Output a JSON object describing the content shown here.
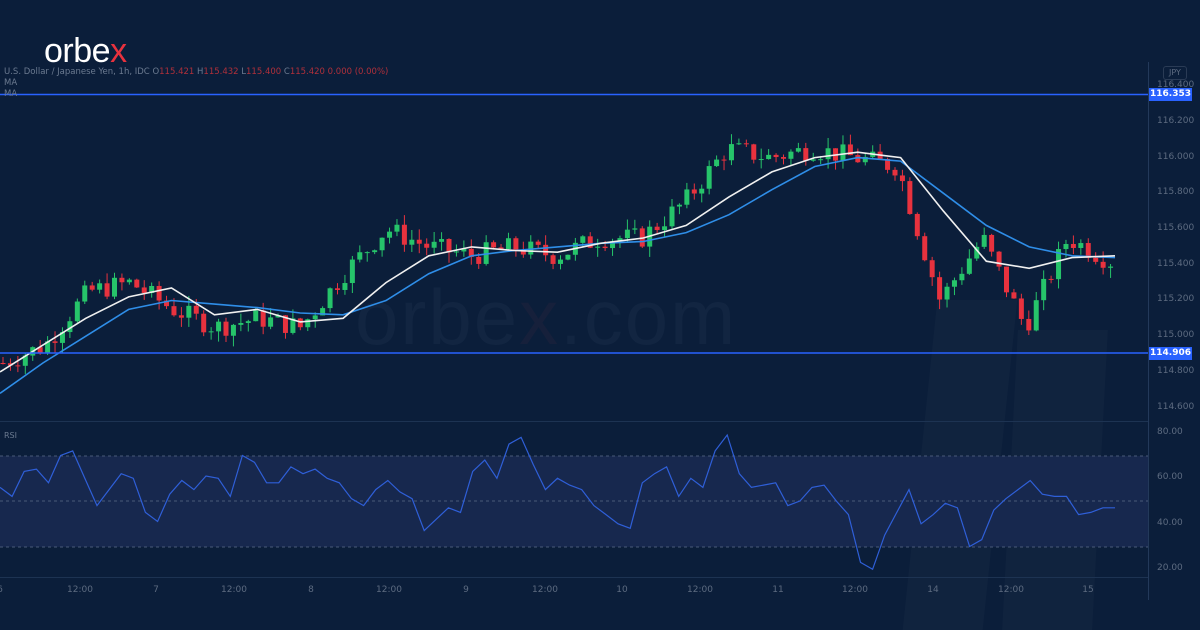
{
  "brand": {
    "logo_main": "orbe",
    "logo_accent": "x",
    "watermark_main": "orbe",
    "watermark_accent": "x",
    "watermark_suffix": ".com"
  },
  "header": {
    "symbol": "U.S. Dollar / Japanese Yen, 1h, IDC",
    "o_label": "O",
    "o": "115.421",
    "h_label": "H",
    "h": "115.432",
    "l_label": "L",
    "l": "115.400",
    "c_label": "C",
    "c": "115.420",
    "change": "0.000 (0.00%)",
    "indicator_1": "MA",
    "indicator_2": "MA"
  },
  "price_axis": {
    "currency": "JPY",
    "labels": [
      "116.400",
      "116.200",
      "116.000",
      "115.800",
      "115.600",
      "115.400",
      "115.200",
      "115.000",
      "114.800",
      "114.600"
    ],
    "resistance": "116.353",
    "support": "114.906"
  },
  "rsi_axis": {
    "label": "RSI",
    "labels": [
      "80.00",
      "60.00",
      "40.00",
      "20.00"
    ]
  },
  "time_axis": {
    "labels": [
      "6",
      "12:00",
      "7",
      "12:00",
      "8",
      "12:00",
      "9",
      "12:00",
      "10",
      "12:00",
      "11",
      "12:00",
      "14",
      "12:00",
      "15"
    ]
  },
  "colors": {
    "background": "#0b1e3a",
    "up": "#26c46a",
    "down": "#e8323e",
    "ma_fast": "#f0f0f0",
    "ma_slow": "#2f8ee8",
    "level_line": "#2962ff",
    "rsi_line": "#2f5fd8",
    "rsi_band": "#17284e"
  },
  "chart_data": [
    {
      "type": "candlestick",
      "title": "U.S. Dollar / Japanese Yen, 1h, IDC",
      "xlabel": "",
      "ylabel": "JPY",
      "ylim": [
        114.5,
        116.45
      ],
      "x_ticks": [
        "6",
        "12:00",
        "7",
        "12:00",
        "8",
        "12:00",
        "9",
        "12:00",
        "10",
        "12:00",
        "11",
        "12:00",
        "14",
        "12:00",
        "15"
      ],
      "horizontal_levels": [
        {
          "name": "resistance",
          "value": 116.353
        },
        {
          "name": "support",
          "value": 114.906
        }
      ],
      "series": [
        {
          "name": "MA fast (white)",
          "values_approx": [
            114.8,
            114.95,
            115.1,
            115.22,
            115.27,
            115.12,
            115.15,
            115.08,
            115.1,
            115.3,
            115.45,
            115.5,
            115.48,
            115.47,
            115.52,
            115.55,
            115.62,
            115.78,
            115.92,
            116.0,
            116.03,
            116.0,
            115.7,
            115.42,
            115.38,
            115.44,
            115.45
          ]
        },
        {
          "name": "MA slow (blue)",
          "values_approx": [
            114.68,
            114.85,
            115.0,
            115.15,
            115.2,
            115.18,
            115.16,
            115.13,
            115.12,
            115.2,
            115.35,
            115.45,
            115.48,
            115.5,
            115.52,
            115.53,
            115.58,
            115.68,
            115.82,
            115.95,
            116.0,
            115.98,
            115.8,
            115.62,
            115.5,
            115.45,
            115.44
          ]
        },
        {
          "name": "Close (approx)",
          "values_approx": [
            114.85,
            114.95,
            115.25,
            115.3,
            115.15,
            115.05,
            115.1,
            115.05,
            115.35,
            115.6,
            115.5,
            115.45,
            115.5,
            115.45,
            115.55,
            115.55,
            115.75,
            116.05,
            116.0,
            116.05,
            116.0,
            115.95,
            115.2,
            115.55,
            115.05,
            115.55,
            115.42
          ]
        }
      ]
    },
    {
      "type": "line",
      "title": "RSI",
      "ylim": [
        15,
        85
      ],
      "bands": [
        30,
        50,
        70
      ],
      "y_ticks": [
        "80.00",
        "60.00",
        "40.00",
        "20.00"
      ],
      "values_approx": [
        56,
        52,
        63,
        64,
        58,
        70,
        72,
        60,
        48,
        55,
        62,
        60,
        45,
        41,
        53,
        59,
        55,
        61,
        60,
        52,
        70,
        67,
        58,
        58,
        65,
        62,
        64,
        60,
        58,
        51,
        48,
        55,
        59,
        54,
        51,
        37,
        42,
        47,
        45,
        63,
        68,
        60,
        75,
        78,
        66,
        55,
        60,
        57,
        55,
        48,
        44,
        40,
        38,
        58,
        62,
        65,
        52,
        60,
        56,
        72,
        79,
        62,
        56,
        57,
        58,
        48,
        50,
        56,
        57,
        50,
        44,
        23,
        20,
        35,
        45,
        55,
        40,
        44,
        49,
        47,
        30,
        33,
        46,
        51,
        55,
        59,
        53,
        52,
        52,
        44,
        45,
        47,
        47
      ]
    }
  ]
}
